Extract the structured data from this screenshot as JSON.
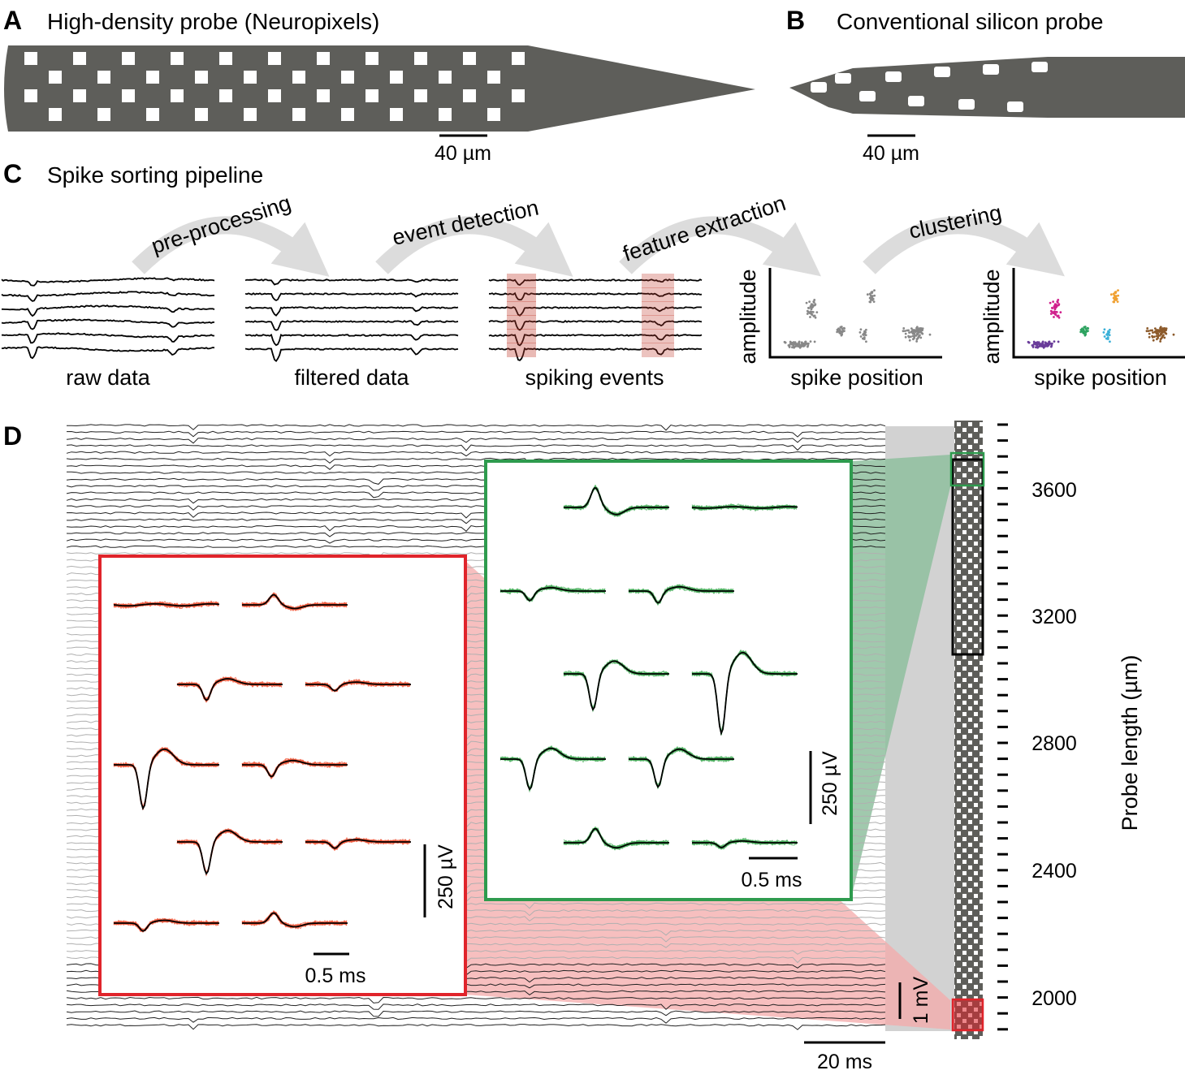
{
  "panel_a": {
    "letter": "A",
    "title": "High-density probe (Neuropixels)",
    "scale_label": "40 µm"
  },
  "panel_b": {
    "letter": "B",
    "title": "Conventional silicon probe",
    "scale_label": "40 µm"
  },
  "panel_c": {
    "letter": "C",
    "title": "Spike sorting pipeline",
    "steps": [
      "pre-processing",
      "event detection",
      "feature extraction",
      "clustering"
    ],
    "stage_labels": [
      "raw data",
      "filtered data",
      "spiking events"
    ],
    "feature_plot": {
      "ylabel": "amplitude",
      "xlabel": "spike position"
    },
    "cluster_plot": {
      "ylabel": "amplitude",
      "xlabel": "spike position"
    },
    "cluster_colors": [
      "#6a3d9a",
      "#d0208c",
      "#2ca25f",
      "#f0a030",
      "#3ab0d8",
      "#8c5a2b"
    ]
  },
  "panel_d": {
    "letter": "D",
    "time_scale": "20 ms",
    "voltage_scale": "1 mV",
    "red_inset": {
      "voltage_scale": "250 µV",
      "time_scale": "0.5 ms",
      "color": "#e0242b"
    },
    "green_inset": {
      "voltage_scale": "250 µV",
      "time_scale": "0.5 ms",
      "color": "#2e9b4e"
    },
    "probe_axis": {
      "label": "Probe length (µm)",
      "ticks": [
        "3600",
        "3200",
        "2800",
        "2400",
        "2000"
      ]
    }
  },
  "colors": {
    "probe": "#5e5e5a",
    "arrow": "#dcdcdc",
    "red_fill": "#f4a9a9",
    "green_fill": "#8fbf9f"
  }
}
